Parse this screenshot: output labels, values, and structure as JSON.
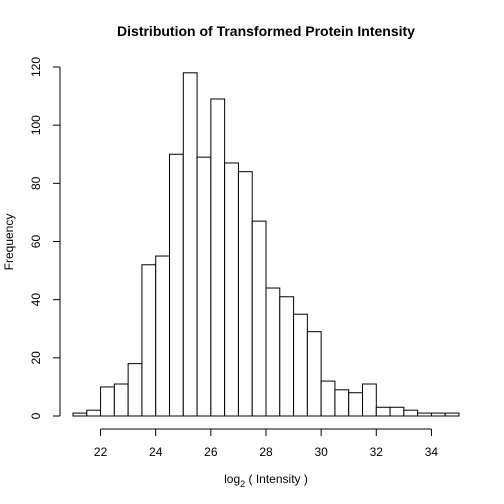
{
  "chart_data": {
    "type": "bar",
    "title": "Distribution of Transformed Protein Intensity",
    "xlabel_main": "log",
    "xlabel_sub": "2",
    "xlabel_rest": " ( Intensity )",
    "ylabel": "Frequency",
    "xlim": [
      21,
      35
    ],
    "ylim": [
      0,
      120
    ],
    "bin_width": 0.5,
    "bins_start": [
      21.0,
      21.5,
      22.0,
      22.5,
      23.0,
      23.5,
      24.0,
      24.5,
      25.0,
      25.5,
      26.0,
      26.5,
      27.0,
      27.5,
      28.0,
      28.5,
      29.0,
      29.5,
      30.0,
      30.5,
      31.0,
      31.5,
      32.0,
      32.5,
      33.0,
      33.5,
      34.0,
      34.5
    ],
    "values": [
      1,
      2,
      10,
      11,
      18,
      52,
      55,
      90,
      118,
      89,
      109,
      87,
      84,
      67,
      44,
      41,
      35,
      29,
      12,
      9,
      8,
      11,
      3,
      3,
      2,
      1,
      1,
      1
    ],
    "x_ticks": [
      22,
      24,
      26,
      28,
      30,
      32,
      34
    ],
    "y_ticks": [
      0,
      20,
      40,
      60,
      80,
      100,
      120
    ],
    "grid": false
  }
}
